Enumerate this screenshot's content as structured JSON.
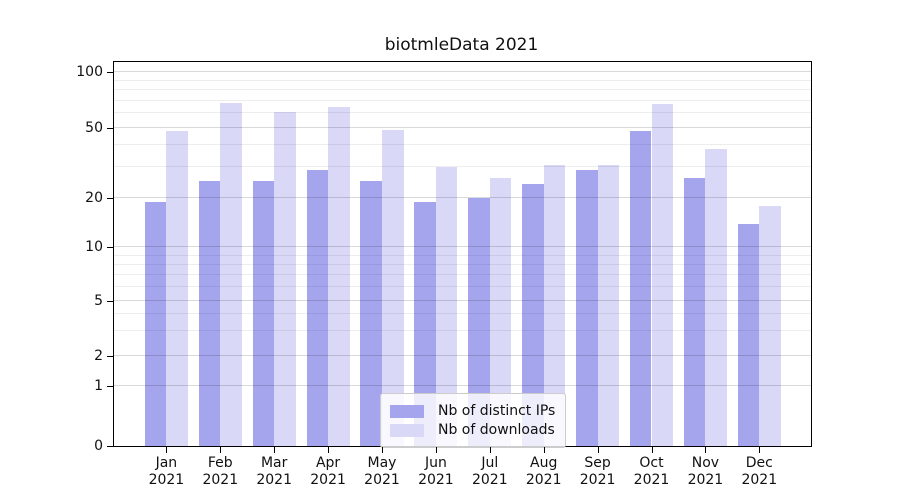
{
  "title": "biotmleData 2021",
  "colors": {
    "distinct_ips": "#a5a5ee",
    "downloads": "#d9d9f7",
    "axis": "#000000",
    "grid_major": "#d9d9d9",
    "grid_minor": "#ededed"
  },
  "y_axis": {
    "tick_labels": [
      "100",
      "50",
      "20",
      "10",
      "5",
      "2",
      "1",
      "0"
    ]
  },
  "x_axis": {
    "tick_labels": [
      "Jan 2021",
      "Feb 2021",
      "Mar 2021",
      "Apr 2021",
      "May 2021",
      "Jun 2021",
      "Jul 2021",
      "Aug 2021",
      "Sep 2021",
      "Oct 2021",
      "Nov 2021",
      "Dec 2021"
    ]
  },
  "legend": {
    "items": [
      {
        "label": "Nb of distinct IPs",
        "color": "#a5a5ee"
      },
      {
        "label": "Nb of downloads",
        "color": "#d9d9f7"
      }
    ]
  },
  "chart_data": {
    "type": "bar",
    "title": "biotmleData 2021",
    "categories": [
      "Jan 2021",
      "Feb 2021",
      "Mar 2021",
      "Apr 2021",
      "May 2021",
      "Jun 2021",
      "Jul 2021",
      "Aug 2021",
      "Sep 2021",
      "Oct 2021",
      "Nov 2021",
      "Dec 2021"
    ],
    "series": [
      {
        "name": "Nb of distinct IPs",
        "color": "#a5a5ee",
        "values": [
          19,
          25,
          25,
          29,
          25,
          19,
          20,
          24,
          29,
          48,
          26,
          14
        ]
      },
      {
        "name": "Nb of downloads",
        "color": "#d9d9f7",
        "values": [
          48,
          68,
          61,
          65,
          49,
          30,
          26,
          31,
          31,
          67,
          38,
          18
        ]
      }
    ],
    "xlabel": "",
    "ylabel": "",
    "yscale": "symlog-like",
    "y_major_ticks": [
      0,
      1,
      2,
      5,
      10,
      20,
      50,
      100
    ],
    "y_minor_ticks": [
      3,
      4,
      6,
      7,
      8,
      9,
      30,
      40,
      60,
      70,
      80,
      90
    ],
    "ylim": [
      0,
      110
    ],
    "grid": true,
    "legend_position": "lower center"
  }
}
